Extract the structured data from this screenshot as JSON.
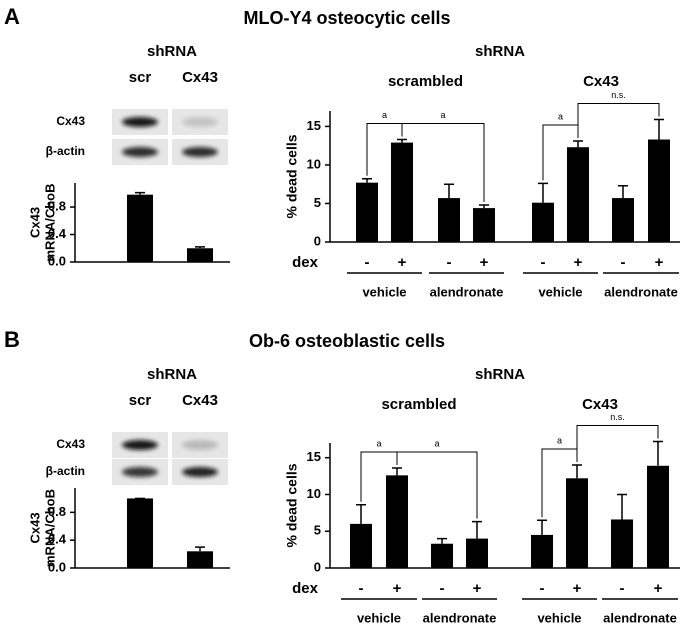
{
  "chart_data": [
    {
      "type": "bar",
      "panel": "A",
      "title": "MLO-Y4 osteocytic cells",
      "header": "shRNA",
      "categories": [
        "scr",
        "Cx43"
      ],
      "blot_labels": [
        "Cx43",
        "β-actin"
      ],
      "ylabel": [
        "Cx43",
        "mRNA/ChoB"
      ],
      "values": [
        0.98,
        0.2
      ],
      "errors": [
        0.03,
        0.02
      ],
      "color": "#000000",
      "ylim": [
        0,
        1.15
      ],
      "yticks": [
        {
          "value": 0,
          "label": "0.0"
        },
        0.4,
        0.8
      ]
    },
    {
      "type": "bar",
      "header": "shRNA",
      "groups": [
        "scrambled",
        "Cx43"
      ],
      "ylabel": "% dead cells",
      "x_row_label": "dex",
      "categories": [
        "-",
        "+",
        "-",
        "+",
        "-",
        "+",
        "-",
        "+"
      ],
      "treatments": [
        "vehicle",
        "alendronate",
        "vehicle",
        "alendronate"
      ],
      "values": [
        7.7,
        12.9,
        5.7,
        4.4,
        5.1,
        12.3,
        5.7,
        13.3
      ],
      "errors": [
        0.5,
        0.4,
        1.8,
        0.4,
        2.5,
        0.8,
        1.6,
        2.6
      ],
      "color": "#000000",
      "ylim": [
        0,
        17
      ],
      "yticks": [
        0,
        5,
        10,
        15
      ],
      "annotations": [
        {
          "label": "a",
          "between": [
            0,
            1
          ]
        },
        {
          "label": "a",
          "between": [
            1,
            3
          ]
        },
        {
          "label": "a",
          "between": [
            4,
            5
          ]
        },
        {
          "label": "n.s.",
          "between": [
            5,
            7
          ]
        }
      ]
    },
    {
      "type": "bar",
      "panel": "B",
      "title": "Ob-6 osteoblastic cells",
      "header": "shRNA",
      "categories": [
        "scr",
        "Cx43"
      ],
      "blot_labels": [
        "Cx43",
        "β-actin"
      ],
      "ylabel": [
        "Cx43",
        "mRNA/ChoB"
      ],
      "values": [
        1.0,
        0.24
      ],
      "errors": [
        0,
        0.06
      ],
      "color": "#000000",
      "ylim": [
        0,
        1.15
      ],
      "yticks": [
        {
          "value": 0,
          "label": "0.0"
        },
        0.4,
        0.8
      ]
    },
    {
      "type": "bar",
      "header": "shRNA",
      "groups": [
        "scrambled",
        "Cx43"
      ],
      "ylabel": "% dead cells",
      "x_row_label": "dex",
      "categories": [
        "-",
        "+",
        "-",
        "+",
        "-",
        "+",
        "-",
        "+"
      ],
      "treatments": [
        "vehicle",
        "alendronate",
        "vehicle",
        "alendronate"
      ],
      "values": [
        6.0,
        12.6,
        3.3,
        4.0,
        4.5,
        12.2,
        6.6,
        13.9
      ],
      "errors": [
        2.6,
        1.0,
        0.7,
        2.3,
        2.0,
        1.8,
        3.4,
        3.3
      ],
      "color": "#000000",
      "ylim": [
        0,
        17
      ],
      "yticks": [
        0,
        5,
        10,
        15
      ],
      "annotations": [
        {
          "label": "a",
          "between": [
            0,
            1
          ]
        },
        {
          "label": "a",
          "between": [
            1,
            3
          ]
        },
        {
          "label": "a",
          "between": [
            4,
            5
          ]
        },
        {
          "label": "n.s.",
          "between": [
            5,
            7
          ]
        }
      ]
    }
  ]
}
